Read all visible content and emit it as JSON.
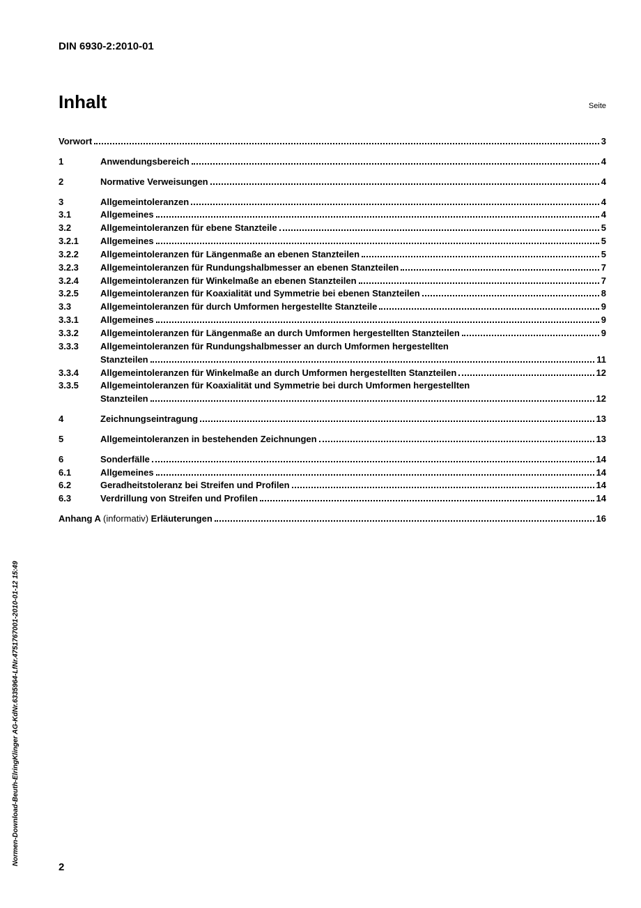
{
  "header": "DIN 6930-2:2010-01",
  "title": "Inhalt",
  "page_label": "Seite",
  "page_number": "2",
  "side_text": "Normen-Download-Beuth-ElringKlinger AG-KdNr.6335964-LfNr.4751767001-2010-01-12 15:49",
  "groups": [
    [
      {
        "num": "",
        "text": "Vorwort",
        "page": "3",
        "full": true
      }
    ],
    [
      {
        "num": "1",
        "text": "Anwendungsbereich",
        "page": "4"
      }
    ],
    [
      {
        "num": "2",
        "text": "Normative Verweisungen",
        "page": "4"
      }
    ],
    [
      {
        "num": "3",
        "text": "Allgemeintoleranzen",
        "page": "4"
      },
      {
        "num": "3.1",
        "text": "Allgemeines",
        "page": "4"
      },
      {
        "num": "3.2",
        "text": "Allgemeintoleranzen für ebene Stanzteile",
        "page": "5"
      },
      {
        "num": "3.2.1",
        "text": "Allgemeines",
        "page": "5"
      },
      {
        "num": "3.2.2",
        "text": "Allgemeintoleranzen für Längenmaße an ebenen Stanzteilen",
        "page": "5"
      },
      {
        "num": "3.2.3",
        "text": "Allgemeintoleranzen für Rundungshalbmesser an ebenen Stanzteilen",
        "page": "7"
      },
      {
        "num": "3.2.4",
        "text": "Allgemeintoleranzen für Winkelmaße an ebenen Stanzteilen",
        "page": "7"
      },
      {
        "num": "3.2.5",
        "text": "Allgemeintoleranzen für Koaxialität und Symmetrie bei ebenen Stanzteilen",
        "page": "8"
      },
      {
        "num": "3.3",
        "text": "Allgemeintoleranzen für durch Umformen hergestellte Stanzteile",
        "page": "9"
      },
      {
        "num": "3.3.1",
        "text": "Allgemeines",
        "page": "9"
      },
      {
        "num": "3.3.2",
        "text": "Allgemeintoleranzen für Längenmaße an durch Umformen hergestellten Stanzteilen",
        "page": "9"
      },
      {
        "num": "3.3.3",
        "text": "Allgemeintoleranzen für Rundungshalbmesser an durch Umformen hergestellten",
        "text2": "Stanzteilen",
        "page": "11"
      },
      {
        "num": "3.3.4",
        "text": "Allgemeintoleranzen für Winkelmaße an durch Umformen hergestellten Stanzteilen",
        "page": "12"
      },
      {
        "num": "3.3.5",
        "text": "Allgemeintoleranzen für Koaxialität und Symmetrie bei durch Umformen hergestellten",
        "text2": "Stanzteilen",
        "page": "12"
      }
    ],
    [
      {
        "num": "4",
        "text": "Zeichnungseintragung",
        "page": "13"
      }
    ],
    [
      {
        "num": "5",
        "text": "Allgemeintoleranzen in bestehenden Zeichnungen",
        "page": "13"
      }
    ],
    [
      {
        "num": "6",
        "text": "Sonderfälle",
        "page": "14"
      },
      {
        "num": "6.1",
        "text": "Allgemeines",
        "page": "14"
      },
      {
        "num": "6.2",
        "text": "Geradheitstoleranz bei Streifen und Profilen",
        "page": "14"
      },
      {
        "num": "6.3",
        "text": "Verdrillung von Streifen und Profilen",
        "page": "14"
      }
    ],
    [
      {
        "num": "",
        "richtext": true,
        "pre": "Anhang A ",
        "mid": "(informativ)  ",
        "post": "Erläuterungen",
        "page": "16",
        "full": true
      }
    ]
  ]
}
